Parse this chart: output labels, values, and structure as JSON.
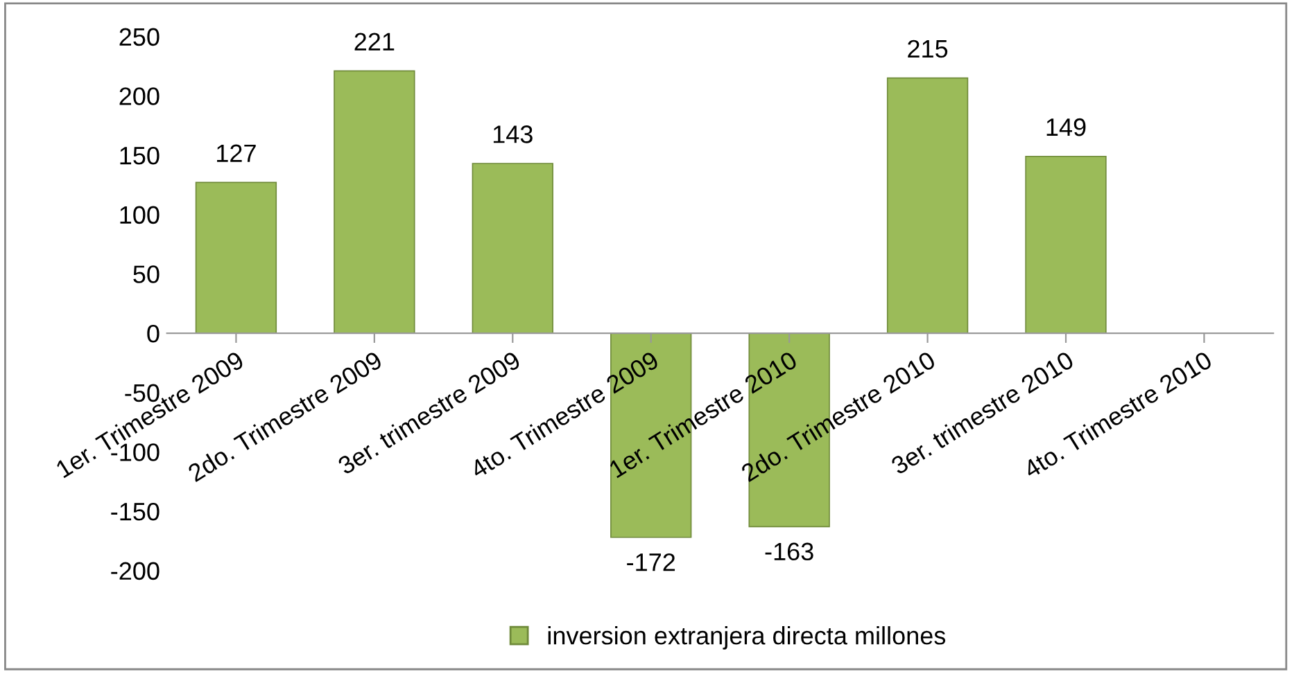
{
  "chart_data": {
    "type": "bar",
    "categories": [
      "1er. Trimestre 2009",
      "2do. Trimestre 2009",
      "3er. trimestre 2009",
      "4to. Trimestre 2009",
      "1er. Trimestre 2010",
      "2do. Trimestre 2010",
      "3er. trimestre 2010",
      "4to. Trimestre 2010"
    ],
    "series": [
      {
        "name": "inversion extranjera directa millones",
        "color": "#9bbb59",
        "values": [
          127,
          221,
          143,
          -172,
          -163,
          215,
          149,
          null
        ]
      }
    ],
    "ylim": [
      -200,
      250
    ],
    "yticks": [
      -200,
      -150,
      -100,
      -50,
      0,
      50,
      100,
      150,
      200,
      250
    ],
    "data_labels": true,
    "grid": false,
    "legend": "bottom"
  }
}
